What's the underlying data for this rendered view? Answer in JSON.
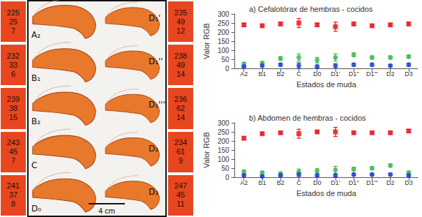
{
  "figure": {
    "scale_bar": "4 cm",
    "stages": [
      {
        "label": "A₂",
        "rgb": [
          225,
          25,
          7
        ]
      },
      {
        "label": "B₁",
        "rgb": [
          232,
          33,
          6
        ]
      },
      {
        "label": "B₂",
        "rgb": [
          239,
          38,
          15
        ]
      },
      {
        "label": "C",
        "rgb": [
          243,
          45,
          7
        ]
      },
      {
        "label": "D₀",
        "rgb": [
          241,
          37,
          8
        ]
      },
      {
        "label": "D₁'",
        "rgb": [
          235,
          49,
          12
        ]
      },
      {
        "label": "D₁''",
        "rgb": [
          238,
          49,
          14
        ]
      },
      {
        "label": "D₁'''",
        "rgb": [
          236,
          62,
          14
        ]
      },
      {
        "label": "D₂",
        "rgb": [
          234,
          61,
          9
        ]
      },
      {
        "label": "D₃",
        "rgb": [
          247,
          45,
          11
        ]
      }
    ]
  },
  "chart_data": [
    {
      "type": "scatter",
      "title": "a) Cefalotórax de hembras - cocidos",
      "x_label": "Estados de muda",
      "y_label": "Valor RGB",
      "categories": [
        "A2",
        "B1",
        "B2",
        "C",
        "D0",
        "D1'",
        "D1''",
        "D1'''",
        "D2",
        "D3"
      ],
      "series": [
        {
          "color": "#e8141c",
          "marker": "square",
          "values": [
            240,
            235,
            245,
            250,
            240,
            230,
            245,
            235,
            240,
            245
          ],
          "errors": [
            8,
            6,
            8,
            25,
            8,
            25,
            8,
            6,
            6,
            8
          ]
        },
        {
          "color": "#3cb84a",
          "marker": "circle",
          "values": [
            25,
            30,
            55,
            60,
            45,
            60,
            75,
            60,
            60,
            65
          ],
          "errors": [
            8,
            8,
            10,
            20,
            15,
            20,
            10,
            8,
            8,
            8
          ]
        },
        {
          "color": "#1f3fd6",
          "marker": "circle",
          "values": [
            10,
            15,
            20,
            15,
            10,
            15,
            20,
            20,
            15,
            20
          ],
          "errors": [
            5,
            6,
            8,
            15,
            8,
            10,
            8,
            8,
            6,
            8
          ]
        }
      ],
      "ylim": [
        0,
        300
      ],
      "yticks": [
        0,
        50,
        100,
        150,
        200,
        250,
        300
      ],
      "grid": false
    },
    {
      "type": "scatter",
      "title": "b) Abdomen de hembras - cocidos",
      "x_label": "Estados de muda",
      "y_label": "Valor RGB",
      "categories": [
        "A2",
        "B1",
        "B2",
        "C",
        "D0",
        "D1'",
        "D1''",
        "D1'''",
        "D2",
        "D3"
      ],
      "series": [
        {
          "color": "#e8141c",
          "marker": "square",
          "values": [
            215,
            240,
            245,
            240,
            250,
            250,
            245,
            245,
            245,
            255
          ],
          "errors": [
            8,
            6,
            6,
            25,
            6,
            25,
            6,
            6,
            6,
            8
          ]
        },
        {
          "color": "#3cb84a",
          "marker": "circle",
          "values": [
            30,
            25,
            20,
            30,
            35,
            40,
            45,
            50,
            65,
            25
          ],
          "errors": [
            10,
            8,
            8,
            15,
            12,
            20,
            10,
            8,
            8,
            8
          ]
        },
        {
          "color": "#1f3fd6",
          "marker": "circle",
          "values": [
            10,
            5,
            10,
            15,
            10,
            10,
            15,
            15,
            15,
            10
          ],
          "errors": [
            5,
            4,
            5,
            10,
            6,
            8,
            6,
            6,
            6,
            5
          ]
        }
      ],
      "ylim": [
        0,
        300
      ],
      "yticks": [
        0,
        50,
        100,
        150,
        200,
        250,
        300
      ],
      "grid": false
    }
  ]
}
